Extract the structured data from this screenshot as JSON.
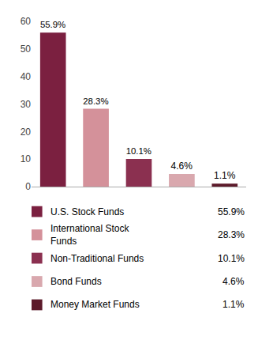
{
  "chart_data": {
    "type": "bar",
    "categories": [
      "U.S. Stock Funds",
      "International Stock\nFunds",
      "Non-Traditional Funds",
      "Bond Funds",
      "Money Market Funds"
    ],
    "values": [
      55.9,
      28.3,
      10.1,
      4.6,
      1.1
    ],
    "value_labels": [
      "55.9%",
      "28.3%",
      "10.1%",
      "4.6%",
      "1.1%"
    ],
    "colors": [
      "#7b2040",
      "#d4919a",
      "#8b3050",
      "#d9a8ae",
      "#5c1a2a"
    ],
    "ylim": [
      0,
      62
    ],
    "yticks": [
      0,
      10,
      20,
      30,
      40,
      50,
      60
    ],
    "data_labels": true,
    "tick_labels": "y",
    "grid": false,
    "legend": "bottom"
  }
}
